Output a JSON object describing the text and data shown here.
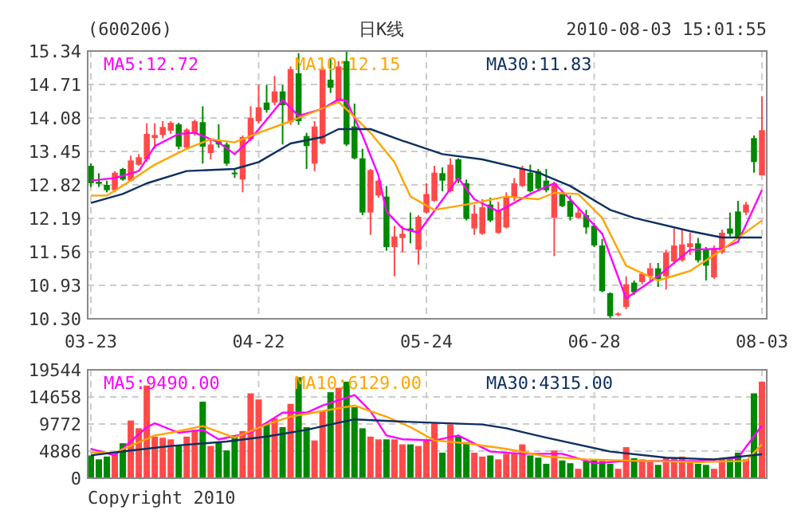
{
  "chart_data": [
    {
      "type": "candlestick",
      "title": "(600206)",
      "subtitle": "日K线",
      "annotations": [
        "2010-08-03 15:01:55"
      ],
      "categories": [
        "03-23",
        null,
        null,
        null,
        null,
        null,
        null,
        null,
        null,
        null,
        null,
        null,
        null,
        null,
        null,
        null,
        null,
        null,
        null,
        null,
        null,
        "04-22",
        null,
        null,
        null,
        null,
        null,
        null,
        null,
        null,
        null,
        null,
        null,
        null,
        null,
        null,
        null,
        null,
        null,
        null,
        null,
        null,
        "05-24",
        null,
        null,
        null,
        null,
        null,
        null,
        null,
        null,
        null,
        null,
        null,
        null,
        null,
        null,
        null,
        null,
        null,
        null,
        null,
        null,
        "06-28",
        null,
        null,
        null,
        null,
        null,
        null,
        null,
        null,
        null,
        null,
        null,
        null,
        null,
        null,
        null,
        null,
        null,
        null,
        null,
        null,
        "08-03"
      ],
      "ohlc": [
        [
          13.18,
          13.22,
          12.78,
          12.85
        ],
        [
          12.88,
          13.04,
          12.78,
          12.84
        ],
        [
          12.82,
          12.9,
          12.68,
          12.72
        ],
        [
          12.72,
          13.08,
          12.68,
          13.05
        ],
        [
          13.12,
          13.14,
          12.9,
          12.92
        ],
        [
          12.9,
          13.37,
          12.88,
          13.28
        ],
        [
          13.2,
          13.4,
          13.18,
          13.34
        ],
        [
          13.3,
          13.98,
          13.25,
          13.78
        ],
        [
          13.7,
          13.98,
          13.5,
          13.76
        ],
        [
          13.76,
          14.02,
          13.7,
          13.91
        ],
        [
          13.84,
          14.02,
          13.78,
          13.99
        ],
        [
          13.96,
          13.99,
          13.49,
          13.54
        ],
        [
          13.52,
          13.89,
          13.49,
          13.86
        ],
        [
          13.78,
          14.05,
          13.75,
          14.02
        ],
        [
          14.0,
          14.3,
          13.22,
          13.54
        ],
        [
          13.42,
          13.68,
          13.3,
          13.58
        ],
        [
          13.64,
          13.96,
          13.52,
          13.58
        ],
        [
          13.58,
          13.62,
          13.18,
          13.22
        ],
        [
          13.05,
          13.12,
          12.95,
          13.03
        ],
        [
          12.92,
          13.75,
          12.68,
          13.72
        ],
        [
          13.68,
          14.3,
          13.65,
          14.08
        ],
        [
          14.02,
          14.7,
          13.98,
          14.28
        ],
        [
          14.37,
          14.7,
          14.18,
          14.23
        ],
        [
          14.37,
          14.87,
          14.32,
          14.58
        ],
        [
          14.58,
          14.7,
          13.58,
          14.32
        ],
        [
          14.0,
          15.05,
          13.95,
          15.0
        ],
        [
          14.92,
          15.3,
          13.95,
          14.02
        ],
        [
          13.74,
          13.8,
          13.12,
          13.55
        ],
        [
          13.22,
          14.02,
          13.08,
          13.92
        ],
        [
          13.6,
          15.05,
          13.58,
          15.0
        ],
        [
          14.8,
          15.2,
          14.55,
          14.65
        ],
        [
          14.4,
          15.15,
          14.35,
          15.05
        ],
        [
          15.15,
          15.34,
          13.55,
          13.58
        ],
        [
          13.92,
          14.35,
          13.3,
          13.32
        ],
        [
          13.32,
          13.5,
          12.25,
          12.3
        ],
        [
          12.3,
          13.12,
          11.88,
          13.1
        ],
        [
          12.62,
          12.92,
          12.58,
          12.9
        ],
        [
          12.6,
          12.8,
          11.58,
          11.65
        ],
        [
          11.65,
          12.05,
          11.1,
          11.85
        ],
        [
          11.82,
          12.05,
          11.55,
          11.9
        ],
        [
          12.0,
          12.3,
          11.72,
          11.96
        ],
        [
          11.6,
          12.25,
          11.32,
          12.22
        ],
        [
          12.3,
          12.85,
          12.28,
          12.65
        ],
        [
          12.52,
          13.18,
          12.5,
          13.05
        ],
        [
          13.04,
          13.15,
          12.7,
          12.9
        ],
        [
          12.7,
          13.32,
          12.68,
          13.2
        ],
        [
          13.3,
          13.32,
          12.85,
          12.92
        ],
        [
          12.85,
          12.92,
          12.15,
          12.18
        ],
        [
          12.0,
          12.45,
          11.88,
          12.28
        ],
        [
          11.9,
          12.55,
          11.88,
          12.4
        ],
        [
          12.45,
          12.58,
          12.12,
          12.15
        ],
        [
          11.92,
          12.5,
          11.9,
          12.35
        ],
        [
          12.02,
          12.68,
          12.0,
          12.58
        ],
        [
          12.58,
          12.95,
          12.52,
          12.85
        ],
        [
          12.8,
          13.18,
          12.78,
          13.12
        ],
        [
          13.05,
          13.2,
          12.68,
          12.7
        ],
        [
          13.08,
          13.12,
          12.7,
          12.75
        ],
        [
          12.9,
          13.12,
          12.68,
          12.72
        ],
        [
          12.2,
          12.88,
          11.48,
          12.85
        ],
        [
          12.65,
          12.7,
          12.4,
          12.42
        ],
        [
          12.52,
          12.62,
          12.15,
          12.22
        ],
        [
          12.2,
          12.38,
          12.18,
          12.3
        ],
        [
          12.25,
          12.35,
          11.9,
          12.02
        ],
        [
          12.05,
          12.1,
          11.65,
          11.68
        ],
        [
          11.68,
          11.8,
          10.8,
          10.82
        ],
        [
          10.78,
          10.8,
          10.3,
          10.35
        ],
        [
          10.37,
          10.42,
          10.35,
          10.4
        ],
        [
          10.52,
          11.1,
          10.48,
          10.95
        ],
        [
          10.98,
          11.02,
          10.75,
          10.8
        ],
        [
          10.99,
          11.18,
          10.95,
          11.15
        ],
        [
          11.1,
          11.35,
          11.0,
          11.25
        ],
        [
          11.25,
          11.35,
          10.9,
          11.05
        ],
        [
          11.1,
          11.6,
          10.85,
          11.55
        ],
        [
          11.38,
          12.0,
          11.32,
          11.68
        ],
        [
          11.4,
          11.98,
          11.37,
          11.7
        ],
        [
          11.65,
          11.92,
          11.5,
          11.72
        ],
        [
          11.72,
          11.82,
          11.36,
          11.4
        ],
        [
          11.62,
          11.65,
          11.02,
          11.3
        ],
        [
          11.08,
          11.68,
          11.05,
          11.62
        ],
        [
          11.55,
          11.98,
          11.52,
          11.92
        ],
        [
          12.0,
          12.3,
          11.85,
          11.9
        ],
        [
          12.32,
          12.52,
          11.8,
          11.82
        ],
        [
          12.3,
          12.5,
          12.25,
          12.45
        ],
        [
          13.7,
          13.75,
          13.05,
          13.25
        ],
        [
          13.0,
          14.48,
          13.0,
          13.85
        ]
      ],
      "colors": [
        "#008800",
        "#008800",
        "#008800",
        "#ff4a4a",
        "#008800",
        "#ff4a4a",
        "#ff4a4a",
        "#ff4a4a",
        "#ff4a4a",
        "#ff4a4a",
        "#ff4a4a",
        "#008800",
        "#ff4a4a",
        "#ff4a4a",
        "#008800",
        "#ff4a4a",
        "#008800",
        "#008800",
        "#008800",
        "#ff4a4a",
        "#ff4a4a",
        "#ff4a4a",
        "#008800",
        "#ff4a4a",
        "#008800",
        "#ff4a4a",
        "#008800",
        "#008800",
        "#ff4a4a",
        "#ff4a4a",
        "#008800",
        "#ff4a4a",
        "#008800",
        "#008800",
        "#008800",
        "#ff4a4a",
        "#ff4a4a",
        "#008800",
        "#ff4a4a",
        "#ff4a4a",
        "#008800",
        "#ff4a4a",
        "#ff4a4a",
        "#ff4a4a",
        "#008800",
        "#ff4a4a",
        "#008800",
        "#008800",
        "#ff4a4a",
        "#ff4a4a",
        "#008800",
        "#ff4a4a",
        "#ff4a4a",
        "#ff4a4a",
        "#ff4a4a",
        "#008800",
        "#008800",
        "#008800",
        "#ff4a4a",
        "#008800",
        "#008800",
        "#ff4a4a",
        "#008800",
        "#008800",
        "#008800",
        "#008800",
        "#ff4a4a",
        "#ff4a4a",
        "#008800",
        "#ff4a4a",
        "#ff4a4a",
        "#008800",
        "#ff4a4a",
        "#ff4a4a",
        "#ff4a4a",
        "#ff4a4a",
        "#008800",
        "#008800",
        "#ff4a4a",
        "#ff4a4a",
        "#008800",
        "#008800",
        "#ff4a4a",
        "#008800",
        "#ff4a4a"
      ],
      "series": [
        {
          "name": "MA5:12.72",
          "type": "line",
          "color": "#ff00ff",
          "values": [
            12.9,
            null,
            null,
            12.95,
            null,
            null,
            13.08,
            null,
            13.55,
            null,
            null,
            13.78,
            null,
            13.8,
            null,
            null,
            13.62,
            null,
            13.4,
            null,
            13.68,
            null,
            14.05,
            null,
            14.42,
            null,
            14.12,
            null,
            null,
            14.25,
            null,
            14.43,
            14.4,
            null,
            13.75,
            null,
            13.0,
            12.32,
            null,
            12.0,
            null,
            11.92,
            null,
            null,
            null,
            null,
            12.95,
            null,
            12.55,
            null,
            null,
            12.32,
            null,
            null,
            null,
            12.65,
            null,
            null,
            12.85,
            null,
            12.55,
            null,
            null,
            null,
            11.9,
            null,
            null,
            10.68,
            null,
            null,
            null,
            11.1,
            null,
            null,
            null,
            11.6,
            null,
            null,
            null,
            11.62,
            null,
            11.75,
            null,
            null,
            12.72
          ]
        },
        {
          "name": "MA10:12.15",
          "type": "line",
          "color": "#ffa500",
          "values": [
            12.62,
            null,
            12.62,
            null,
            null,
            12.9,
            null,
            null,
            13.2,
            null,
            null,
            null,
            13.5,
            null,
            null,
            13.68,
            null,
            null,
            13.62,
            null,
            null,
            13.8,
            null,
            null,
            null,
            14.02,
            null,
            null,
            14.2,
            null,
            null,
            14.38,
            null,
            14.1,
            null,
            13.8,
            null,
            null,
            13.25,
            null,
            12.6,
            null,
            null,
            12.35,
            null,
            null,
            null,
            12.45,
            null,
            null,
            null,
            null,
            12.6,
            null,
            null,
            null,
            12.55,
            null,
            12.67,
            null,
            null,
            12.65,
            null,
            null,
            12.2,
            null,
            null,
            11.3,
            null,
            null,
            null,
            11.02,
            null,
            null,
            null,
            11.2,
            null,
            null,
            null,
            11.6,
            null,
            null,
            null,
            null,
            12.15
          ]
        },
        {
          "name": "MA30:11.83",
          "type": "line",
          "color": "#0d3060",
          "values": [
            12.48,
            null,
            null,
            null,
            12.65,
            null,
            null,
            12.85,
            null,
            null,
            null,
            null,
            13.08,
            null,
            null,
            null,
            null,
            null,
            13.12,
            null,
            null,
            13.25,
            null,
            null,
            null,
            13.6,
            null,
            null,
            null,
            13.72,
            null,
            13.87,
            null,
            null,
            null,
            13.87,
            null,
            null,
            null,
            13.65,
            null,
            null,
            null,
            null,
            13.4,
            null,
            null,
            null,
            null,
            13.3,
            null,
            null,
            null,
            null,
            null,
            null,
            13.05,
            null,
            null,
            null,
            12.8,
            null,
            null,
            null,
            null,
            12.35,
            null,
            null,
            12.2,
            null,
            null,
            null,
            null,
            null,
            null,
            11.95,
            null,
            null,
            null,
            11.83,
            null,
            null,
            null,
            null,
            11.83
          ]
        }
      ],
      "ylim": [
        10.3,
        15.34
      ],
      "yticks": [
        {
          "value": 10.3,
          "label": "10.30"
        },
        10.93,
        11.56,
        12.19,
        12.82,
        13.45,
        14.08,
        14.71,
        15.34
      ],
      "grid": true,
      "legend": "top"
    },
    {
      "type": "bar",
      "annotations": [
        "Copyright 2010"
      ],
      "tick_labels": "y",
      "categories": [
        null,
        null,
        null,
        null,
        null,
        null,
        null,
        null,
        null,
        null,
        null,
        null,
        null,
        null,
        null,
        null,
        null,
        null,
        null,
        null,
        null,
        null,
        null,
        null,
        null,
        null,
        null,
        null,
        null,
        null,
        null,
        null,
        null,
        null,
        null,
        null,
        null,
        null,
        null,
        null,
        null,
        null,
        null,
        null,
        null,
        null,
        null,
        null,
        null,
        null,
        null,
        null,
        null,
        null,
        null,
        null,
        null,
        null,
        null,
        null,
        null,
        null,
        null,
        null,
        null,
        null,
        null,
        null,
        null,
        null,
        null,
        null,
        null,
        null,
        null,
        null,
        null,
        null,
        null,
        null,
        null,
        null,
        null,
        null,
        null
      ],
      "values": [
        4100,
        3400,
        3900,
        4400,
        6300,
        10400,
        9000,
        16700,
        7500,
        7300,
        7000,
        6000,
        7500,
        8700,
        13800,
        5800,
        6500,
        5000,
        7700,
        8500,
        15300,
        14200,
        9900,
        10800,
        9200,
        13400,
        18200,
        9200,
        6800,
        12100,
        15500,
        16300,
        17400,
        12800,
        9000,
        7500,
        7000,
        7000,
        7000,
        6100,
        6100,
        5800,
        7000,
        10000,
        4600,
        9700,
        7500,
        6500,
        4600,
        3900,
        4100,
        3400,
        4400,
        4400,
        6100,
        4100,
        3700,
        2600,
        5000,
        3200,
        2700,
        1700,
        3100,
        3400,
        3100,
        2600,
        1700,
        5600,
        3600,
        3400,
        3100,
        2400,
        3700,
        3700,
        3900,
        3100,
        2600,
        2400,
        1700,
        3400,
        3400,
        4600,
        3400,
        15300,
        17400
      ],
      "colors": [
        "#008800",
        "#008800",
        "#008800",
        "#ff4a4a",
        "#008800",
        "#ff4a4a",
        "#ff4a4a",
        "#ff4a4a",
        "#ff4a4a",
        "#ff4a4a",
        "#ff4a4a",
        "#008800",
        "#ff4a4a",
        "#ff4a4a",
        "#008800",
        "#ff4a4a",
        "#008800",
        "#008800",
        "#008800",
        "#ff4a4a",
        "#ff4a4a",
        "#ff4a4a",
        "#008800",
        "#ff4a4a",
        "#008800",
        "#ff4a4a",
        "#008800",
        "#008800",
        "#ff4a4a",
        "#ff4a4a",
        "#008800",
        "#ff4a4a",
        "#008800",
        "#008800",
        "#008800",
        "#ff4a4a",
        "#ff4a4a",
        "#008800",
        "#ff4a4a",
        "#ff4a4a",
        "#008800",
        "#ff4a4a",
        "#ff4a4a",
        "#ff4a4a",
        "#008800",
        "#ff4a4a",
        "#008800",
        "#008800",
        "#ff4a4a",
        "#ff4a4a",
        "#008800",
        "#ff4a4a",
        "#ff4a4a",
        "#ff4a4a",
        "#ff4a4a",
        "#008800",
        "#008800",
        "#008800",
        "#ff4a4a",
        "#008800",
        "#008800",
        "#ff4a4a",
        "#008800",
        "#008800",
        "#008800",
        "#008800",
        "#ff4a4a",
        "#ff4a4a",
        "#008800",
        "#ff4a4a",
        "#ff4a4a",
        "#008800",
        "#ff4a4a",
        "#ff4a4a",
        "#ff4a4a",
        "#ff4a4a",
        "#008800",
        "#008800",
        "#ff4a4a",
        "#ff4a4a",
        "#008800",
        "#008800",
        "#ff4a4a",
        "#008800",
        "#ff4a4a"
      ],
      "series": [
        {
          "name": "MA5:9490.00",
          "type": "line",
          "color": "#ff00ff",
          "values": [
            5300,
            null,
            null,
            4100,
            null,
            null,
            null,
            9200,
            9900,
            null,
            null,
            8200,
            null,
            null,
            8700,
            null,
            7000,
            null,
            null,
            null,
            8200,
            null,
            null,
            null,
            11800,
            null,
            null,
            11800,
            null,
            13100,
            null,
            null,
            null,
            15000,
            null,
            12100,
            null,
            7700,
            null,
            7000,
            null,
            null,
            null,
            6800,
            null,
            null,
            7700,
            null,
            null,
            null,
            4800,
            null,
            null,
            null,
            4400,
            null,
            null,
            null,
            null,
            4400,
            null,
            null,
            null,
            2700,
            null,
            null,
            null,
            3100,
            null,
            null,
            null,
            null,
            3100,
            null,
            null,
            null,
            3100,
            null,
            null,
            null,
            null,
            3700,
            null,
            null,
            9490
          ]
        },
        {
          "name": "MA10:6129.00",
          "type": "line",
          "color": "#ffa500",
          "values": [
            4600,
            null,
            null,
            4600,
            null,
            null,
            null,
            null,
            7700,
            null,
            8200,
            null,
            null,
            null,
            9400,
            null,
            null,
            null,
            7300,
            null,
            null,
            null,
            9700,
            null,
            null,
            11100,
            null,
            null,
            null,
            12100,
            null,
            null,
            null,
            13100,
            null,
            null,
            null,
            11100,
            null,
            null,
            9200,
            null,
            null,
            6800,
            null,
            null,
            null,
            6300,
            null,
            null,
            null,
            null,
            5300,
            null,
            null,
            null,
            null,
            3900,
            null,
            null,
            null,
            null,
            3400,
            null,
            null,
            null,
            null,
            null,
            null,
            3100,
            null,
            null,
            null,
            null,
            null,
            null,
            2900,
            null,
            null,
            null,
            null,
            null,
            3100,
            null,
            6129
          ]
        },
        {
          "name": "MA30:4315.00",
          "type": "line",
          "color": "#0d3060",
          "values": [
            4100,
            null,
            null,
            null,
            null,
            5000,
            null,
            null,
            null,
            null,
            5800,
            null,
            null,
            null,
            null,
            null,
            null,
            6600,
            null,
            null,
            null,
            null,
            7500,
            null,
            null,
            null,
            null,
            8700,
            null,
            null,
            null,
            10000,
            null,
            10600,
            null,
            null,
            null,
            null,
            null,
            10200,
            null,
            null,
            null,
            null,
            null,
            null,
            null,
            null,
            null,
            9700,
            null,
            null,
            9000,
            null,
            null,
            null,
            null,
            7300,
            null,
            null,
            null,
            null,
            null,
            null,
            null,
            4800,
            null,
            null,
            null,
            null,
            null,
            null,
            3700,
            null,
            null,
            null,
            null,
            null,
            3400,
            null,
            null,
            null,
            null,
            null,
            4315
          ]
        }
      ],
      "ylim": [
        0,
        19544
      ],
      "yticks": [
        0,
        4886,
        9772,
        14658,
        19544
      ],
      "grid": true,
      "legend": "top"
    }
  ]
}
